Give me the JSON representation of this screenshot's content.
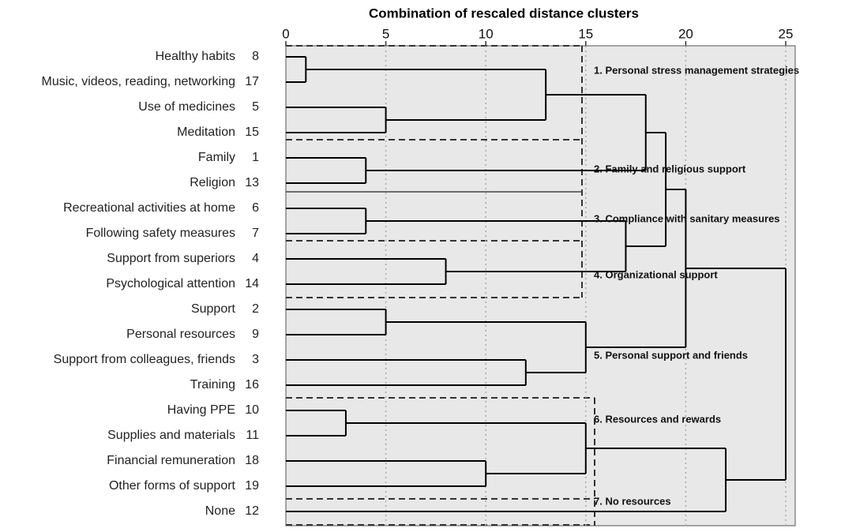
{
  "chart_data": {
    "type": "dendrogram",
    "title": "Combination of rescaled distance clusters",
    "leaves": [
      "Healthy habits",
      "Music, videos, reading, networking",
      "Use of medicines",
      "Meditation",
      "Family",
      "Religion",
      "Recreational activities at home",
      "Following safety measures",
      "Support from superiors",
      "Psychological attention",
      "Support",
      "Personal resources",
      "Support from colleagues, friends",
      "Training",
      "Having PPE",
      "Supplies and materials",
      "Financial remuneration",
      "Other forms of support",
      "None"
    ],
    "case_numbers": [
      8,
      17,
      5,
      15,
      1,
      13,
      6,
      7,
      4,
      14,
      2,
      9,
      3,
      16,
      10,
      11,
      18,
      19,
      12
    ],
    "merges": [
      {
        "children": [
          0,
          1
        ],
        "height": 1
      },
      {
        "children": [
          2,
          3
        ],
        "height": 5
      },
      {
        "children": [
          19,
          20
        ],
        "height": 13
      },
      {
        "children": [
          4,
          5
        ],
        "height": 4
      },
      {
        "children": [
          21,
          22
        ],
        "height": 18
      },
      {
        "children": [
          6,
          7
        ],
        "height": 4
      },
      {
        "children": [
          8,
          9
        ],
        "height": 8
      },
      {
        "children": [
          24,
          25
        ],
        "height": 17
      },
      {
        "children": [
          23,
          26
        ],
        "height": 19
      },
      {
        "children": [
          10,
          11
        ],
        "height": 5
      },
      {
        "children": [
          12,
          13
        ],
        "height": 12
      },
      {
        "children": [
          28,
          29
        ],
        "height": 15
      },
      {
        "children": [
          27,
          30
        ],
        "height": 20
      },
      {
        "children": [
          14,
          15
        ],
        "height": 3
      },
      {
        "children": [
          16,
          17
        ],
        "height": 10
      },
      {
        "children": [
          32,
          33
        ],
        "height": 15
      },
      {
        "children": [
          34,
          18
        ],
        "height": 22
      },
      {
        "children": [
          31,
          35
        ],
        "height": 25
      }
    ],
    "xlim": [
      0,
      25
    ],
    "xticks": [
      0,
      5,
      10,
      15,
      20,
      25
    ],
    "grid": true,
    "color": "#000000",
    "clusters": [
      "1. Personal stress management strategies",
      "2. Family and religious support",
      "3. Compliance with sanitary measures",
      "4. Organizational support",
      "5. Personal support and friends",
      "6. Resources and rewards",
      "7. No resources"
    ]
  }
}
